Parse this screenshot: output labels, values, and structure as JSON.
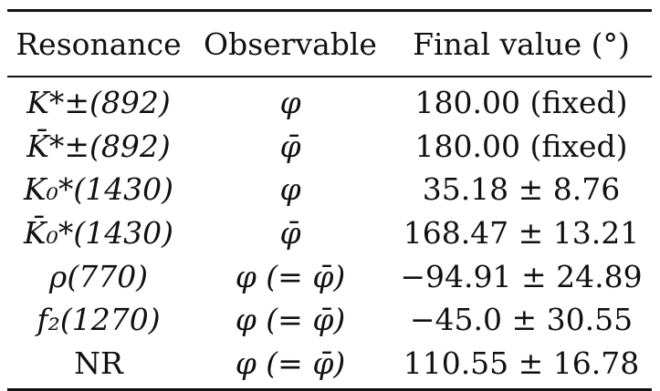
{
  "table": {
    "headers": [
      "Resonance",
      "Observable",
      "Final value (°)"
    ],
    "rows": [
      {
        "resonance": "K*±(892)",
        "observable": "φ",
        "value": "180.00 (fixed)"
      },
      {
        "resonance": "K̄*±(892)",
        "observable": "φ̄",
        "value": "180.00 (fixed)"
      },
      {
        "resonance": "K₀*(1430)",
        "observable": "φ",
        "value": "35.18 ± 8.76"
      },
      {
        "resonance": "K̄₀*(1430)",
        "observable": "φ̄",
        "value": "168.47 ± 13.21"
      },
      {
        "resonance": "ρ(770)",
        "observable": "φ (= φ̄)",
        "value": "−94.91 ± 24.89"
      },
      {
        "resonance": "f₂(1270)",
        "observable": "φ (= φ̄)",
        "value": "−45.0 ± 30.55"
      },
      {
        "resonance": "NR",
        "observable": "φ (= φ̄)",
        "value": "110.55 ± 16.78"
      }
    ]
  }
}
